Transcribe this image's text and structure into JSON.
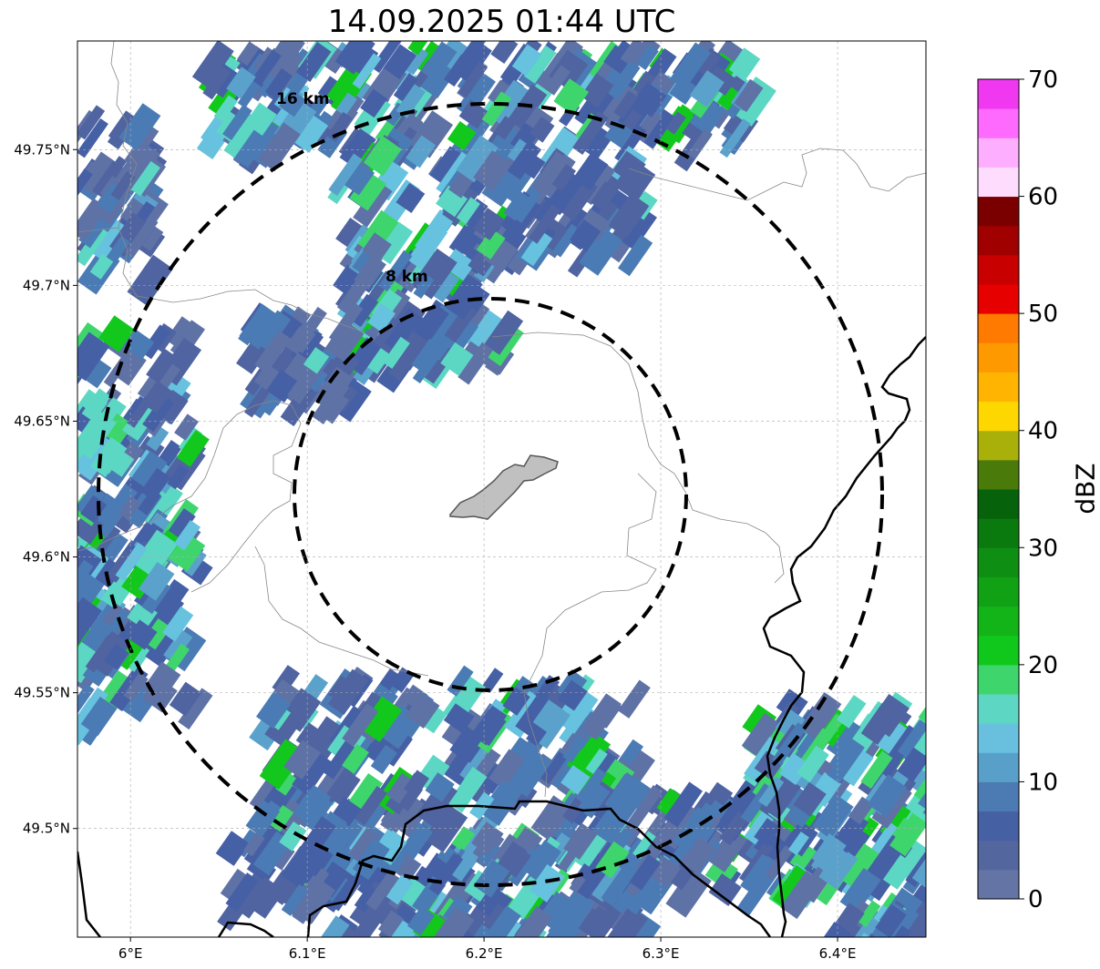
{
  "title": "14.09.2025 01:44 UTC",
  "map": {
    "lon_range": [
      5.97,
      6.45
    ],
    "lat_range": [
      49.46,
      49.79
    ],
    "lon_ticks": [
      {
        "value": 6.0,
        "label": "6°E"
      },
      {
        "value": 6.1,
        "label": "6.1°E"
      },
      {
        "value": 6.2,
        "label": "6.2°E"
      },
      {
        "value": 6.3,
        "label": "6.3°E"
      },
      {
        "value": 6.4,
        "label": "6.4°E"
      }
    ],
    "lat_ticks": [
      {
        "value": 49.5,
        "label": "49.5°N"
      },
      {
        "value": 49.55,
        "label": "49.55°N"
      },
      {
        "value": 49.6,
        "label": "49.6°N"
      },
      {
        "value": 49.65,
        "label": "49.65°N"
      },
      {
        "value": 49.7,
        "label": "49.7°N"
      },
      {
        "value": 49.75,
        "label": "49.75°N"
      }
    ],
    "grid": true,
    "range_rings": [
      {
        "label": "8 km",
        "radius_km": 8
      },
      {
        "label": "16 km",
        "radius_km": 16
      }
    ]
  },
  "colorbar": {
    "title": "dBZ",
    "range": [
      0,
      70
    ],
    "ticks": [
      "0",
      "10",
      "20",
      "30",
      "40",
      "50",
      "60",
      "70"
    ],
    "colors": [
      "#6474a4",
      "#53679e",
      "#4660a4",
      "#4c7ab2",
      "#589fca",
      "#68c0de",
      "#5dd6c4",
      "#3ed66c",
      "#10c81c",
      "#12b418",
      "#10a214",
      "#0e8e12",
      "#0a7a0e",
      "#07620c",
      "#4a7a0a",
      "#aab00a",
      "#fed700",
      "#feb400",
      "#fe9a00",
      "#fe7a00",
      "#e60000",
      "#c80000",
      "#a00000",
      "#7a0000",
      "#fedcfe",
      "#feaefe",
      "#fe6afe",
      "#f038f0"
    ]
  },
  "colors": {
    "city": "#c0c0c0",
    "country_border": "#000000",
    "admin_border": "#888888"
  }
}
